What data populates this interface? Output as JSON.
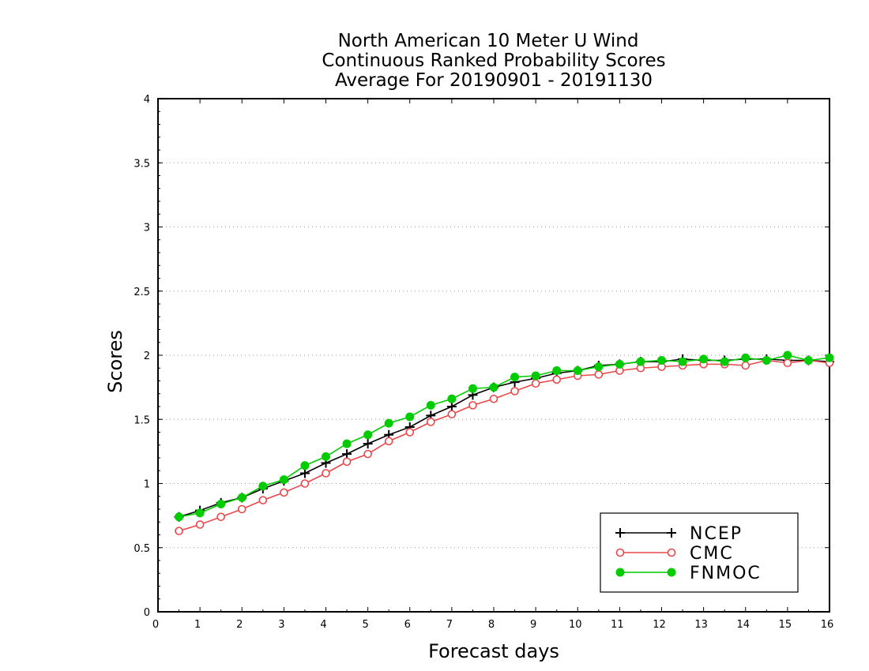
{
  "chart_data": {
    "type": "line",
    "title": [
      "North American 10 Meter U Wind",
      "Continuous Ranked Probability Scores",
      "Average For 20190901 - 20191130"
    ],
    "xlabel": "Forecast days",
    "ylabel": "Scores",
    "xlim": [
      0,
      16
    ],
    "ylim": [
      0,
      4
    ],
    "xticks": [
      "0",
      "1",
      "2",
      "3",
      "4",
      "5",
      "6",
      "7",
      "8",
      "9",
      "10",
      "11",
      "12",
      "13",
      "14",
      "15",
      "16"
    ],
    "yticks": [
      "0",
      "0.5",
      "1",
      "1.5",
      "2",
      "2.5",
      "3",
      "3.5",
      "4"
    ],
    "grid": "horizontal dotted",
    "legend_position": "bottom-right",
    "x": [
      0.5,
      1,
      1.5,
      2,
      2.5,
      3,
      3.5,
      4,
      4.5,
      5,
      5.5,
      6,
      6.5,
      7,
      7.5,
      8,
      8.5,
      9,
      9.5,
      10,
      10.5,
      11,
      11.5,
      12,
      12.5,
      13,
      13.5,
      14,
      14.5,
      15,
      15.5,
      16
    ],
    "series": [
      {
        "name": "NCEP",
        "color": "#000000",
        "marker": "plus",
        "values": [
          0.74,
          0.79,
          0.85,
          0.89,
          0.96,
          1.02,
          1.08,
          1.16,
          1.23,
          1.31,
          1.38,
          1.44,
          1.53,
          1.6,
          1.69,
          1.75,
          1.79,
          1.82,
          1.86,
          1.88,
          1.92,
          1.93,
          1.95,
          1.95,
          1.97,
          1.96,
          1.96,
          1.97,
          1.97,
          1.96,
          1.96,
          1.95
        ]
      },
      {
        "name": "CMC",
        "color": "#e8484a",
        "marker": "open-circle",
        "values": [
          0.63,
          0.68,
          0.74,
          0.8,
          0.87,
          0.93,
          1.0,
          1.08,
          1.17,
          1.23,
          1.33,
          1.4,
          1.48,
          1.54,
          1.61,
          1.66,
          1.72,
          1.78,
          1.81,
          1.84,
          1.85,
          1.88,
          1.9,
          1.91,
          1.92,
          1.93,
          1.93,
          1.92,
          1.96,
          1.94,
          1.96,
          1.94
        ]
      },
      {
        "name": "FNMOC",
        "color": "#00cc00",
        "marker": "filled-circle",
        "values": [
          0.74,
          0.77,
          0.84,
          0.89,
          0.98,
          1.03,
          1.14,
          1.21,
          1.31,
          1.38,
          1.47,
          1.52,
          1.61,
          1.66,
          1.74,
          1.75,
          1.83,
          1.84,
          1.88,
          1.88,
          1.91,
          1.93,
          1.95,
          1.96,
          1.95,
          1.97,
          1.95,
          1.98,
          1.96,
          2.0,
          1.96,
          1.98
        ]
      }
    ]
  }
}
